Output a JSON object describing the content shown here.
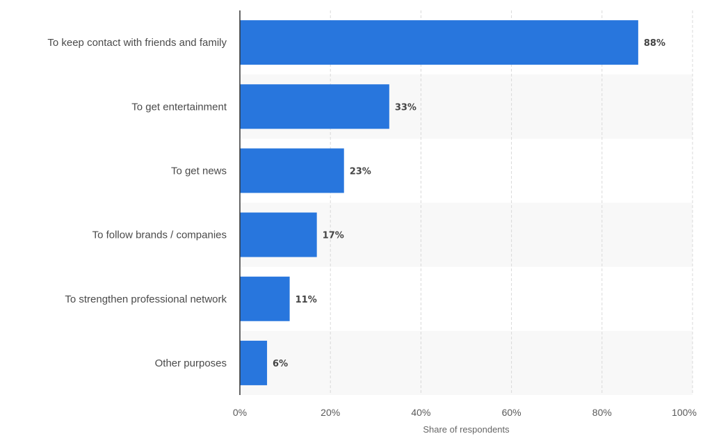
{
  "chart_data": {
    "type": "bar",
    "orientation": "horizontal",
    "categories": [
      "To keep contact with friends and family",
      "To get entertainment",
      "To get news",
      "To follow brands / companies",
      "To strengthen professional network",
      "Other purposes"
    ],
    "values": [
      88,
      33,
      23,
      17,
      11,
      6
    ],
    "value_labels": [
      "88%",
      "33%",
      "23%",
      "17%",
      "11%",
      "6%"
    ],
    "x_ticks": [
      "0%",
      "20%",
      "40%",
      "60%",
      "80%",
      "100%"
    ],
    "x_tick_values": [
      0,
      20,
      40,
      60,
      80,
      100
    ],
    "xlim": [
      0,
      100
    ],
    "xlabel": "Share of respondents",
    "ylabel": "",
    "title": "",
    "grid": "vertical dashed",
    "bar_color": "#2876dd",
    "band_color": "#f8f8f8",
    "grid_color": "#d9d9d9",
    "axis_color": "#333333"
  }
}
